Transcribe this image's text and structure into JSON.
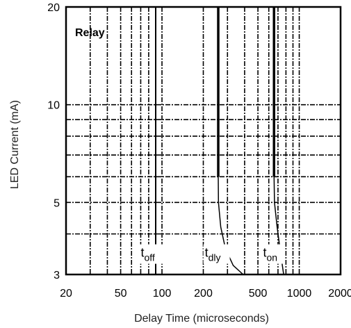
{
  "chart_data": {
    "type": "line",
    "title": "Relay",
    "xlabel": "Delay Time (microseconds)",
    "ylabel": "LED Current (mA)",
    "x_scale": "log",
    "y_scale": "log",
    "xlim": [
      20,
      2000
    ],
    "ylim": [
      3,
      20
    ],
    "x_ticks": [
      20,
      50,
      100,
      200,
      500,
      1000,
      2000
    ],
    "x_tick_labels": [
      "20",
      "50",
      "100",
      "200",
      "500",
      "1000",
      "2000"
    ],
    "y_ticks": [
      3,
      5,
      10,
      20
    ],
    "y_tick_labels": [
      "3",
      "5",
      "10",
      "20"
    ],
    "grid": true,
    "series": [
      {
        "name": "t",
        "label_main": "t",
        "label_sub": "off",
        "label_at": {
          "x": 70,
          "y": 3.4
        },
        "points": [
          [
            90,
            3
          ],
          [
            90,
            20
          ]
        ]
      },
      {
        "name": "t",
        "label_main": "t",
        "label_sub": "dly",
        "label_at": {
          "x": 205,
          "y": 3.4
        },
        "points": [
          [
            390,
            3
          ],
          [
            330,
            3.2
          ],
          [
            290,
            3.6
          ],
          [
            268,
            4.2
          ],
          [
            258,
            5
          ],
          [
            257,
            6
          ],
          [
            257,
            20
          ]
        ]
      },
      {
        "name": "t",
        "label_main": "t",
        "label_sub": "on",
        "label_at": {
          "x": 545,
          "y": 3.4
        },
        "points": [
          [
            770,
            3
          ],
          [
            730,
            3.5
          ],
          [
            690,
            4.2
          ],
          [
            660,
            5
          ],
          [
            655,
            6
          ],
          [
            655,
            20
          ]
        ]
      }
    ]
  }
}
